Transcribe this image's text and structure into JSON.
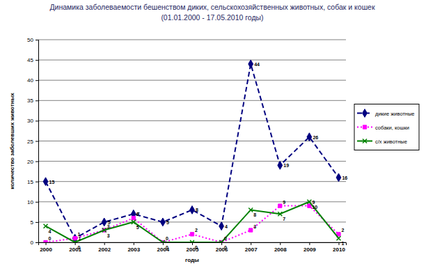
{
  "chart_data": {
    "type": "line",
    "title": "Динамика заболеваемости бешенством  диких, сельскохозяйственных животных, собак и кошек (01.01.2000 - 17.05.2010 годы)",
    "x_label": "годы",
    "y_label": "количество заболевших животных",
    "categories": [
      "2000",
      "2001",
      "2002",
      "2003",
      "2004",
      "2005",
      "2006",
      "2007",
      "2008",
      "2009",
      "2010"
    ],
    "series": [
      {
        "name": "дикие животные",
        "color": "#000080",
        "marker": "diamond",
        "line_style": "dashed",
        "values": [
          15,
          1,
          5,
          7,
          5,
          8,
          4,
          44,
          19,
          26,
          16
        ]
      },
      {
        "name": "собаки, кошки",
        "color": "#ff00ff",
        "marker": "square",
        "line_style": "dotted",
        "values": [
          0,
          1,
          3,
          6,
          0,
          2,
          0,
          3,
          9,
          9,
          2
        ]
      },
      {
        "name": "с/х животные",
        "color": "#008000",
        "marker": "x",
        "line_style": "solid",
        "values": [
          4,
          0,
          3,
          5,
          0,
          0,
          0,
          8,
          7,
          10,
          1
        ]
      }
    ],
    "ylim": [
      0,
      50
    ],
    "yticks": [
      0,
      5,
      10,
      15,
      20,
      25,
      30,
      35,
      40,
      45,
      50
    ],
    "grid": true,
    "legend": "right",
    "data_labels": true
  }
}
